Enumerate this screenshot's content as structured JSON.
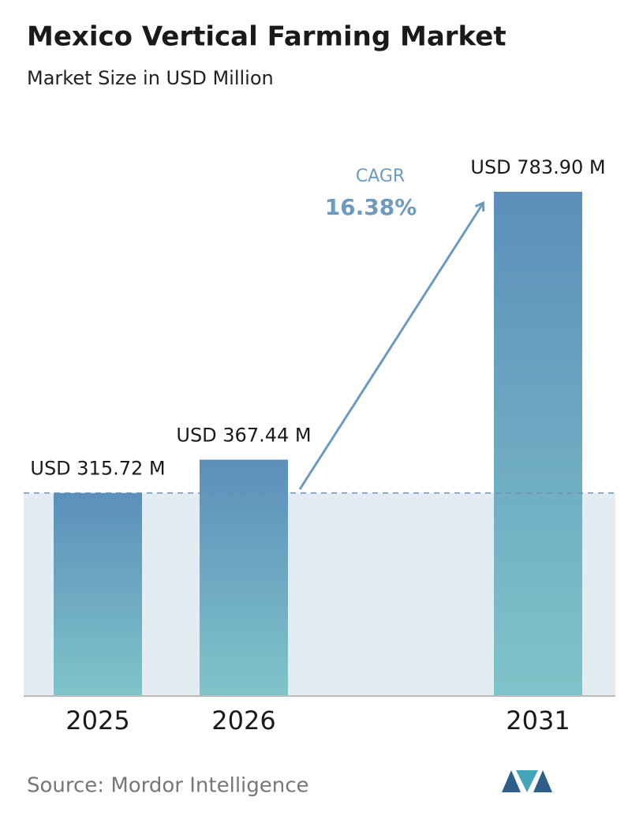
{
  "chart_data": {
    "type": "bar",
    "title": "Mexico Vertical Farming Market",
    "subtitle": "Market Size in USD Million",
    "categories": [
      "2025",
      "2026",
      "2031"
    ],
    "values": [
      315.72,
      367.44,
      783.9
    ],
    "value_labels": [
      "USD 315.72 M",
      "USD 367.44 M",
      "USD 783.90 M"
    ],
    "annotation": {
      "label": "CAGR",
      "value": "16.38%"
    },
    "source": "Source: Mordor Intelligence"
  }
}
